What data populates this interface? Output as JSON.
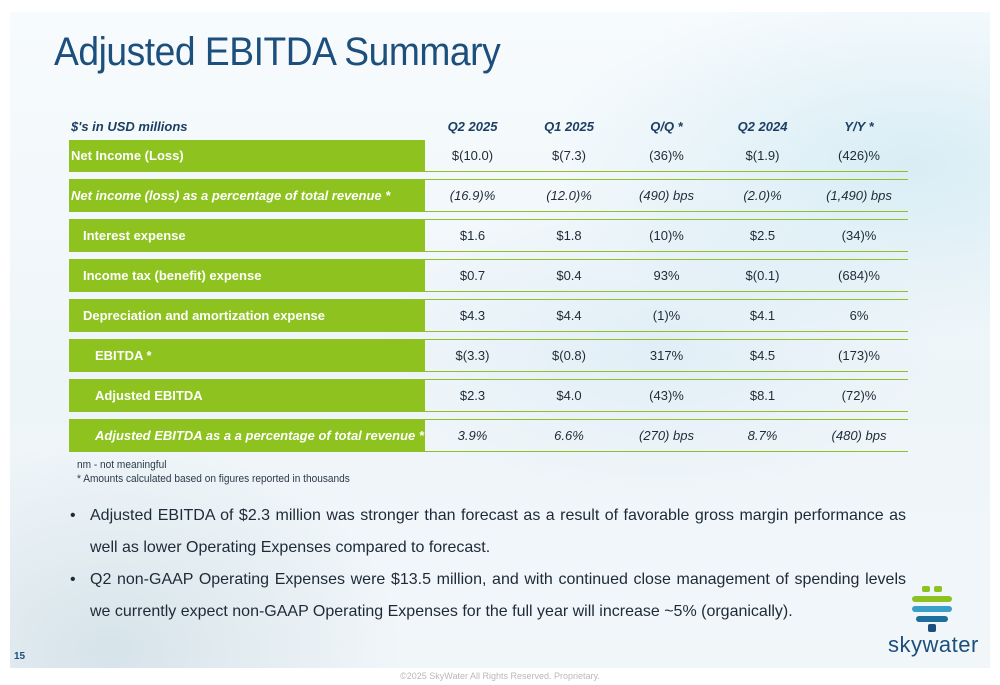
{
  "slide": {
    "title": "Adjusted EBITDA Summary",
    "page_number": "15",
    "copyright": "©2025 SkyWater All Rights Reserved. Proprietary.",
    "logo_text": "skywater",
    "colors": {
      "title": "#1c4f7c",
      "label_fill": "#8dc21f",
      "divider": "#8fbf2a"
    }
  },
  "table": {
    "headers": [
      "$'s in USD millions",
      "Q2 2025",
      "Q1 2025",
      "Q/Q *",
      "Q2 2024",
      "Y/Y *"
    ],
    "rows": [
      {
        "label": "Net Income (Loss)",
        "values": [
          "$(10.0)",
          "$(7.3)",
          "(36)%",
          "$(1.9)",
          "(426)%"
        ]
      },
      {
        "label": "Net income (loss) as a percentage of total revenue *",
        "values": [
          "(16.9)%",
          "(12.0)%",
          "(490) bps",
          "(2.0)%",
          "(1,490) bps"
        ]
      },
      {
        "label": "Interest expense",
        "values": [
          "$1.6",
          "$1.8",
          "(10)%",
          "$2.5",
          "(34)%"
        ]
      },
      {
        "label": "Income tax (benefit) expense",
        "values": [
          "$0.7",
          "$0.4",
          "93%",
          "$(0.1)",
          "(684)%"
        ]
      },
      {
        "label": "Depreciation and amortization expense",
        "values": [
          "$4.3",
          "$4.4",
          "(1)%",
          "$4.1",
          "6%"
        ]
      },
      {
        "label": "EBITDA *",
        "values": [
          "$(3.3)",
          "$(0.8)",
          "317%",
          "$4.5",
          "(173)%"
        ]
      },
      {
        "label": "Adjusted EBITDA",
        "values": [
          "$2.3",
          "$4.0",
          "(43)%",
          "$8.1",
          "(72)%"
        ]
      },
      {
        "label": "Adjusted EBITDA as a a percentage of total revenue *",
        "values": [
          "3.9%",
          "6.6%",
          "(270) bps",
          "8.7%",
          "(480) bps"
        ]
      }
    ]
  },
  "notes": [
    "nm - not meaningful",
    "* Amounts calculated based on figures reported in thousands"
  ],
  "bullets": [
    "Adjusted EBITDA of $2.3 million was stronger than forecast as a result of favorable gross margin performance as well as lower Operating Expenses compared to forecast.",
    "Q2 non-GAAP Operating Expenses were $13.5 million, and with continued close management of spending levels we currently expect non-GAAP Operating Expenses for the full year will increase ~5% (organically)."
  ]
}
